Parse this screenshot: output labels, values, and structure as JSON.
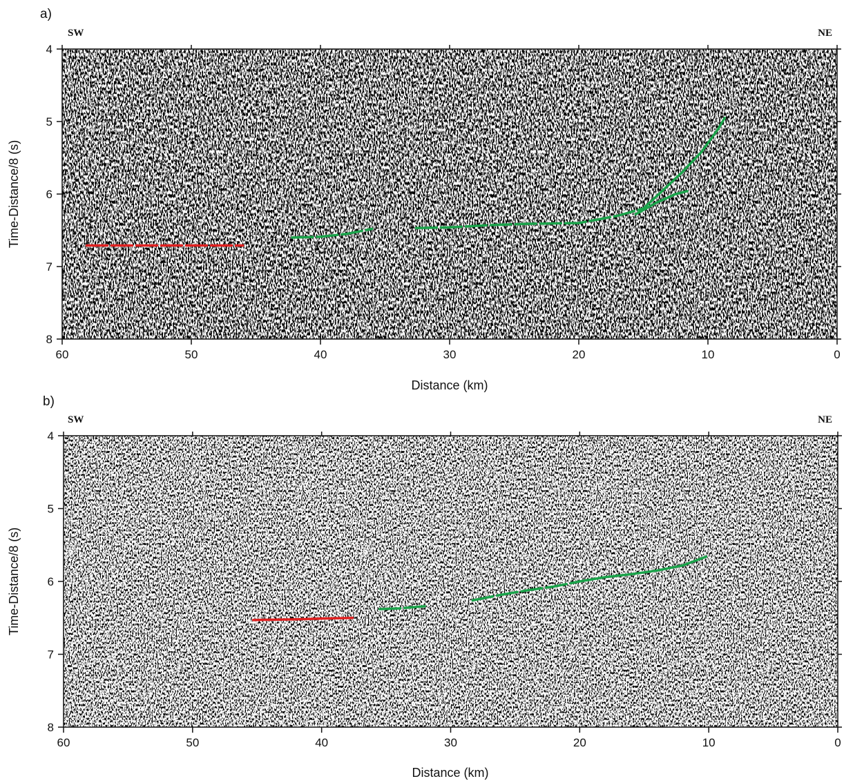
{
  "chart_data": [
    {
      "type": "line",
      "panel_label": "a)",
      "direction_left": "SW",
      "direction_right": "NE",
      "xlabel": "Distance (km)",
      "ylabel": "Time-Distance/8 (s)",
      "xlim": [
        60,
        0
      ],
      "ylim": [
        8,
        4
      ],
      "x_reversed": true,
      "y_inverted": true,
      "x_ticks": [
        60,
        50,
        40,
        30,
        20,
        10,
        0
      ],
      "y_ticks": [
        4,
        5,
        6,
        7,
        8
      ],
      "background": "seismic-record-section",
      "series": [
        {
          "color": "#e02020",
          "dashed": true,
          "points": [
            [
              58.1,
              6.71
            ],
            [
              55.5,
              6.71
            ],
            [
              53.0,
              6.71
            ],
            [
              50.0,
              6.71
            ],
            [
              47.0,
              6.71
            ],
            [
              46.0,
              6.71
            ]
          ]
        },
        {
          "color": "#1aa34a",
          "dashed": true,
          "points": [
            [
              42.2,
              6.6
            ],
            [
              40.0,
              6.59
            ],
            [
              38.0,
              6.55
            ],
            [
              36.0,
              6.48
            ]
          ]
        },
        {
          "color": "#1aa34a",
          "dashed": true,
          "points": [
            [
              32.6,
              6.47
            ],
            [
              30.0,
              6.46
            ],
            [
              27.0,
              6.43
            ],
            [
              24.0,
              6.41
            ],
            [
              20.0,
              6.4
            ],
            [
              17.0,
              6.3
            ],
            [
              15.0,
              6.2
            ]
          ]
        },
        {
          "color": "#1aa34a",
          "dashed": false,
          "points": [
            [
              15.0,
              6.2
            ],
            [
              13.5,
              5.95
            ],
            [
              12.0,
              5.7
            ],
            [
              10.5,
              5.42
            ],
            [
              9.2,
              5.1
            ],
            [
              8.7,
              4.95
            ]
          ]
        },
        {
          "color": "#1aa34a",
          "dashed": false,
          "points": [
            [
              15.6,
              6.28
            ],
            [
              14.0,
              6.12
            ],
            [
              12.5,
              6.0
            ],
            [
              11.6,
              5.96
            ]
          ]
        }
      ]
    },
    {
      "type": "line",
      "panel_label": "b)",
      "direction_left": "SW",
      "direction_right": "NE",
      "xlabel": "Distance (km)",
      "ylabel": "Time-Distance/8 (s)",
      "xlim": [
        60,
        0
      ],
      "ylim": [
        8,
        4
      ],
      "x_reversed": true,
      "y_inverted": true,
      "x_ticks": [
        60,
        50,
        40,
        30,
        20,
        10,
        0
      ],
      "y_ticks": [
        4,
        5,
        6,
        7,
        8
      ],
      "background": "seismic-record-section",
      "series": [
        {
          "color": "#e02020",
          "dashed": false,
          "points": [
            [
              45.3,
              6.53
            ],
            [
              42.0,
              6.52
            ],
            [
              40.0,
              6.51
            ],
            [
              37.6,
              6.5
            ]
          ]
        },
        {
          "color": "#1aa34a",
          "dashed": true,
          "points": [
            [
              35.5,
              6.38
            ],
            [
              34.0,
              6.37
            ],
            [
              32.0,
              6.34
            ]
          ]
        },
        {
          "color": "#1aa34a",
          "dashed": true,
          "points": [
            [
              28.3,
              6.26
            ],
            [
              26.0,
              6.18
            ],
            [
              24.0,
              6.12
            ],
            [
              22.0,
              6.07
            ],
            [
              20.0,
              6.0
            ]
          ]
        },
        {
          "color": "#1aa34a",
          "dashed": false,
          "points": [
            [
              20.0,
              6.0
            ],
            [
              18.0,
              5.94
            ],
            [
              16.0,
              5.9
            ],
            [
              14.0,
              5.85
            ],
            [
              12.0,
              5.78
            ],
            [
              10.2,
              5.66
            ]
          ]
        }
      ]
    }
  ]
}
